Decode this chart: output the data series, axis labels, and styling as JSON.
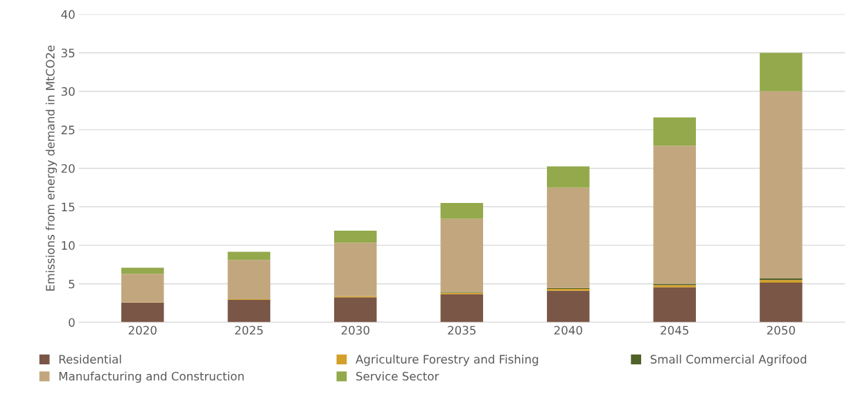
{
  "chart_data": {
    "type": "bar",
    "stacked": true,
    "ylabel": "Emissions from energy demand in MtCO2e",
    "categories": [
      "2020",
      "2025",
      "2030",
      "2035",
      "2040",
      "2045",
      "2050"
    ],
    "series": [
      {
        "name": "Residential",
        "color": "#7a5646",
        "values": [
          2.55,
          2.9,
          3.25,
          3.65,
          4.1,
          4.55,
          5.15
        ]
      },
      {
        "name": "Agriculture Forestry and Fishing",
        "color": "#d4a02a",
        "values": [
          0.05,
          0.1,
          0.15,
          0.2,
          0.25,
          0.3,
          0.35
        ]
      },
      {
        "name": "Small Commercial Agrifood",
        "color": "#4f6228",
        "values": [
          null,
          null,
          null,
          0.1,
          0.1,
          0.15,
          0.2
        ]
      },
      {
        "name": "Manufacturing and Construction",
        "color": "#c2a77e",
        "values": [
          3.7,
          5.1,
          6.95,
          9.5,
          13.05,
          17.95,
          24.3
        ]
      },
      {
        "name": "Service Sector",
        "color": "#93a94b",
        "values": [
          0.8,
          1.05,
          1.55,
          2.05,
          2.75,
          3.65,
          5.0
        ]
      }
    ],
    "ylim": [
      0,
      40
    ],
    "yticks": [
      0,
      5,
      10,
      15,
      20,
      25,
      30,
      35,
      40
    ],
    "grid": "y",
    "legend": "bottom"
  }
}
